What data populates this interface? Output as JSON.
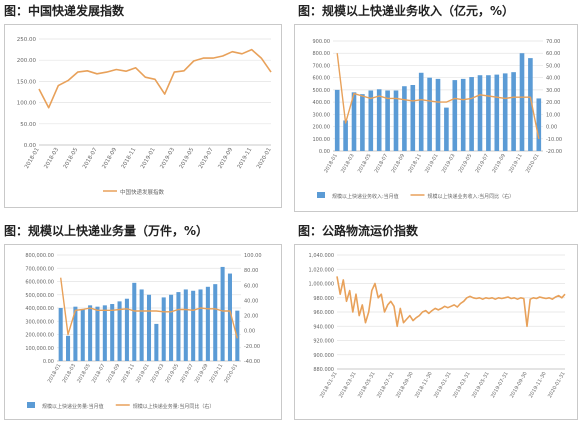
{
  "panels": [
    {
      "title": "图：中国快递发展指数"
    },
    {
      "title": "图：规模以上快递业务收入（亿元，%）"
    },
    {
      "title": "图：规模以上快递业务量（万件，%）"
    },
    {
      "title": "图：公路物流运价指数"
    }
  ],
  "chart_data": [
    {
      "type": "line",
      "title": "图：中国快递发展指数",
      "x": [
        "2018-01",
        "2018-02",
        "2018-03",
        "2018-04",
        "2018-05",
        "2018-06",
        "2018-07",
        "2018-08",
        "2018-09",
        "2018-10",
        "2018-11",
        "2018-12",
        "2019-01",
        "2019-02",
        "2019-03",
        "2019-04",
        "2019-05",
        "2019-06",
        "2019-07",
        "2019-08",
        "2019-09",
        "2019-10",
        "2019-11",
        "2019-12",
        "2020-01"
      ],
      "x_ticks": [
        "2018-01",
        "2018-03",
        "2018-05",
        "2018-07",
        "2018-09",
        "2018-11",
        "2019-01",
        "2019-03",
        "2019-05",
        "2019-07",
        "2019-09",
        "2019-11",
        "2020-01"
      ],
      "series": [
        {
          "name": "中国快递发展指数",
          "color": "#E8A15A",
          "values": [
            132,
            88,
            140,
            152,
            172,
            175,
            168,
            172,
            178,
            174,
            182,
            160,
            155,
            120,
            172,
            175,
            198,
            205,
            205,
            210,
            220,
            215,
            225,
            205,
            172
          ]
        }
      ],
      "ylim": [
        0,
        250
      ],
      "y_ticks": [
        "0.00",
        "50.00",
        "100.00",
        "150.00",
        "200.00",
        "250.00"
      ],
      "grid": true,
      "legend": "bottom"
    },
    {
      "type": "bar",
      "title": "图：规模以上快递业务收入（亿元，%）",
      "x": [
        "2018-01",
        "2018-02",
        "2018-03",
        "2018-04",
        "2018-05",
        "2018-06",
        "2018-07",
        "2018-08",
        "2018-09",
        "2018-10",
        "2018-11",
        "2018-12",
        "2019-01",
        "2019-02",
        "2019-03",
        "2019-04",
        "2019-05",
        "2019-06",
        "2019-07",
        "2019-08",
        "2019-09",
        "2019-10",
        "2019-11",
        "2019-12",
        "2020-01"
      ],
      "x_ticks": [
        "2018-01",
        "2018-03",
        "2018-05",
        "2018-07",
        "2018-09",
        "2018-11",
        "2019-01",
        "2019-03",
        "2019-05",
        "2019-07",
        "2019-09",
        "2019-11",
        "2020-01"
      ],
      "series": [
        {
          "name": "规模以上快递业务收入:当月值",
          "kind": "bar",
          "axis": "left",
          "color": "#5B9BD5",
          "values": [
            500,
            250,
            480,
            465,
            495,
            505,
            495,
            495,
            530,
            540,
            640,
            600,
            590,
            355,
            580,
            590,
            605,
            620,
            620,
            625,
            635,
            645,
            800,
            760,
            430
          ]
        },
        {
          "name": "规模以上快递业务收入:当月同比（右）",
          "kind": "line",
          "axis": "right",
          "color": "#E8A15A",
          "values": [
            60,
            3,
            27,
            25,
            23,
            25,
            23,
            23,
            22,
            21,
            22,
            21,
            20,
            20,
            23,
            22,
            23,
            26,
            25,
            24,
            23,
            24,
            24,
            24,
            -10
          ]
        }
      ],
      "ylim": [
        0,
        900
      ],
      "y2lim": [
        -20,
        70
      ],
      "y_ticks": [
        "0.00",
        "100.00",
        "200.00",
        "300.00",
        "400.00",
        "500.00",
        "600.00",
        "700.00",
        "800.00",
        "900.00"
      ],
      "y2_ticks": [
        "-20.00",
        "-10.00",
        "0.00",
        "10.00",
        "20.00",
        "30.00",
        "40.00",
        "50.00",
        "60.00",
        "70.00"
      ],
      "grid": true,
      "legend": "bottom"
    },
    {
      "type": "bar",
      "title": "图：规模以上快递业务量（万件，%）",
      "x": [
        "2018-01",
        "2018-02",
        "2018-03",
        "2018-04",
        "2018-05",
        "2018-06",
        "2018-07",
        "2018-08",
        "2018-09",
        "2018-10",
        "2018-11",
        "2018-12",
        "2019-01",
        "2019-02",
        "2019-03",
        "2019-04",
        "2019-05",
        "2019-06",
        "2019-07",
        "2019-08",
        "2019-09",
        "2019-10",
        "2019-11",
        "2019-12",
        "2020-01"
      ],
      "x_ticks": [
        "2018-01",
        "2018-03",
        "2018-05",
        "2018-07",
        "2018-09",
        "2018-11",
        "2019-01",
        "2019-03",
        "2019-05",
        "2019-07",
        "2019-09",
        "2019-11",
        "2020-01"
      ],
      "series": [
        {
          "name": "规模以上快递业务量:当月值",
          "kind": "bar",
          "axis": "left",
          "color": "#5B9BD5",
          "values": [
            400000,
            190000,
            410000,
            390000,
            420000,
            410000,
            420000,
            430000,
            450000,
            470000,
            590000,
            540000,
            500000,
            280000,
            480000,
            500000,
            520000,
            540000,
            530000,
            540000,
            560000,
            580000,
            710000,
            660000,
            380000
          ]
        },
        {
          "name": "规模以上快递业务量:当月同比（右）",
          "kind": "line",
          "axis": "right",
          "color": "#E8A15A",
          "values": [
            70,
            -5,
            27,
            28,
            30,
            27,
            27,
            27,
            28,
            29,
            26,
            26,
            26,
            26,
            25,
            25,
            28,
            28,
            27,
            30,
            29,
            29,
            26,
            26,
            -10
          ]
        }
      ],
      "ylim": [
        0,
        800000
      ],
      "y2lim": [
        -40,
        100
      ],
      "y_ticks": [
        "0.00",
        "100,000.00",
        "200,000.00",
        "300,000.00",
        "400,000.00",
        "500,000.00",
        "600,000.00",
        "700,000.00",
        "800,000.00"
      ],
      "y2_ticks": [
        "-40.00",
        "-20.00",
        "0.00",
        "20.00",
        "40.00",
        "60.00",
        "80.00",
        "100.00"
      ],
      "grid": true,
      "legend": "bottom"
    },
    {
      "type": "line",
      "title": "图：公路物流运价指数",
      "x_ticks": [
        "2018-01-31",
        "2018-03-31",
        "2018-05-31",
        "2018-07-31",
        "2018-09-30",
        "2018-11-30",
        "2019-01-31",
        "2019-03-31",
        "2019-05-31",
        "2019-07-31",
        "2019-09-30",
        "2019-11-30",
        "2020-01-31"
      ],
      "series": [
        {
          "name": "公路物流运价指数",
          "color": "#E8A15A",
          "values": [
            1010,
            985,
            1005,
            975,
            990,
            960,
            985,
            955,
            970,
            945,
            960,
            990,
            1000,
            980,
            985,
            960,
            970,
            975,
            968,
            940,
            965,
            945,
            950,
            955,
            948,
            952,
            955,
            960,
            962,
            958,
            962,
            965,
            963,
            965,
            968,
            966,
            968,
            970,
            967,
            972,
            975,
            980,
            982,
            980,
            979,
            980,
            978,
            980,
            979,
            980,
            978,
            980,
            979,
            980,
            981,
            979,
            980,
            978,
            980,
            979,
            940,
            978,
            980,
            979,
            981,
            980,
            979,
            980,
            978,
            981,
            983,
            980,
            985
          ]
        }
      ],
      "ylim": [
        880,
        1040
      ],
      "y_ticks": [
        "880.000",
        "900.000",
        "920.000",
        "940.000",
        "960.000",
        "980.000",
        "1,000.000",
        "1,020.000",
        "1,040.000"
      ],
      "grid": true,
      "legend": "none"
    }
  ],
  "colors": {
    "bar": "#5B9BD5",
    "line": "#E8A15A",
    "grid": "#E3E3E3",
    "axis_text": "#666666"
  }
}
